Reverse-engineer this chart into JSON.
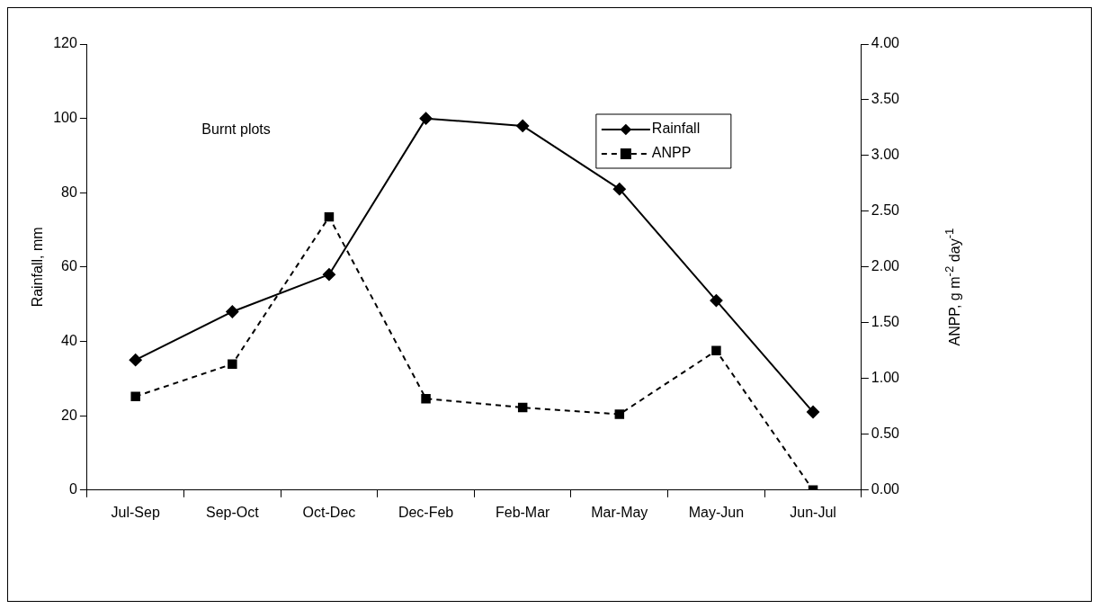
{
  "chart_data": {
    "type": "line",
    "categories": [
      "Jul-Sep",
      "Sep-Oct",
      "Oct-Dec",
      "Dec-Feb",
      "Feb-Mar",
      "Mar-May",
      "May-Jun",
      "Jun-Jul"
    ],
    "series": [
      {
        "name": "Rainfall",
        "color": "#000000",
        "values": [
          35,
          48,
          58,
          100,
          98,
          81,
          51,
          21
        ],
        "marker": "diamond",
        "line_style": "solid"
      },
      {
        "name": "ANPP",
        "color": "#000000",
        "values": [
          0.84,
          1.13,
          2.45,
          0.82,
          0.74,
          0.68,
          1.25,
          0
        ],
        "marker": "square",
        "line_style": "dashed",
        "axis": "y2"
      }
    ],
    "ylabel": "Rainfall, mm",
    "y2label": "ANPP, g m$^{-2}$ day$^{-1}$",
    "ylim": [
      0,
      120
    ],
    "yticks": [
      0,
      20,
      40,
      60,
      80,
      100,
      120
    ],
    "y2lim": [
      0,
      4
    ],
    "y2ticks": [
      {
        "value": 0,
        "label": "0.00"
      },
      {
        "value": 0.5,
        "label": "0.50"
      },
      {
        "value": 1,
        "label": "1.00"
      },
      {
        "value": 1.5,
        "label": "1.50"
      },
      {
        "value": 2,
        "label": "2.00"
      },
      {
        "value": 2.5,
        "label": "2.50"
      },
      {
        "value": 3,
        "label": "3.00"
      },
      {
        "value": 3.5,
        "label": "3.50"
      },
      {
        "value": 4,
        "label": "4.00"
      }
    ],
    "annotations": [
      "Burnt plots"
    ],
    "grid": false,
    "legend": "top right"
  }
}
